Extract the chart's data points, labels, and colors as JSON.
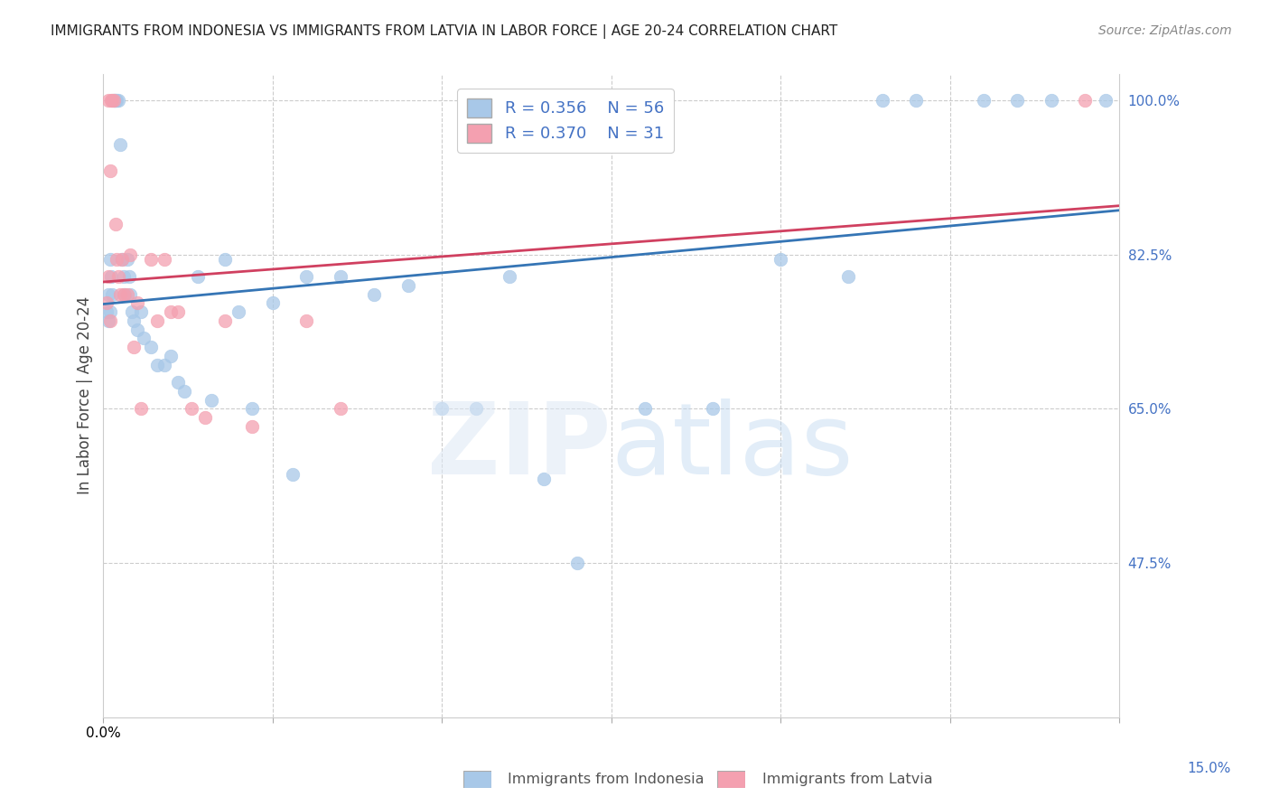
{
  "title": "IMMIGRANTS FROM INDONESIA VS IMMIGRANTS FROM LATVIA IN LABOR FORCE | AGE 20-24 CORRELATION CHART",
  "source": "Source: ZipAtlas.com",
  "ylabel": "In Labor Force | Age 20-24",
  "color_indonesia": "#a8c8e8",
  "color_latvia": "#f4a0b0",
  "color_indonesia_line": "#3575b5",
  "color_latvia_line": "#d04060",
  "color_right_axis": "#4472c4",
  "grid_color": "#cccccc",
  "xlim": [
    0.0,
    15.0
  ],
  "ylim": [
    30.0,
    103.0
  ],
  "right_yticks": [
    100.0,
    82.5,
    65.0,
    47.5
  ],
  "indo_x": [
    0.05,
    0.07,
    0.08,
    0.1,
    0.1,
    0.12,
    0.13,
    0.15,
    0.17,
    0.18,
    0.2,
    0.22,
    0.25,
    0.28,
    0.3,
    0.32,
    0.35,
    0.38,
    0.4,
    0.42,
    0.45,
    0.5,
    0.55,
    0.6,
    0.7,
    0.8,
    0.9,
    1.0,
    1.1,
    1.2,
    1.4,
    1.6,
    1.8,
    2.0,
    2.2,
    2.5,
    2.8,
    3.0,
    3.5,
    4.0,
    4.5,
    5.0,
    5.5,
    6.0,
    6.5,
    7.0,
    8.0,
    9.0,
    10.0,
    11.0,
    11.5,
    12.0,
    13.0,
    13.5,
    14.0,
    14.8
  ],
  "indo_y": [
    76.0,
    78.0,
    75.0,
    82.0,
    76.0,
    80.0,
    78.0,
    100.0,
    100.0,
    100.0,
    100.0,
    100.0,
    95.0,
    82.0,
    80.0,
    78.0,
    82.0,
    80.0,
    78.0,
    76.0,
    75.0,
    74.0,
    76.0,
    73.0,
    72.0,
    70.0,
    70.0,
    71.0,
    68.0,
    67.0,
    80.0,
    66.0,
    82.0,
    76.0,
    65.0,
    77.0,
    57.5,
    80.0,
    80.0,
    78.0,
    79.0,
    65.0,
    65.0,
    80.0,
    57.0,
    47.5,
    65.0,
    65.0,
    82.0,
    80.0,
    100.0,
    100.0,
    100.0,
    100.0,
    100.0,
    100.0
  ],
  "lat_x": [
    0.05,
    0.07,
    0.08,
    0.1,
    0.1,
    0.12,
    0.13,
    0.15,
    0.18,
    0.2,
    0.22,
    0.25,
    0.28,
    0.3,
    0.35,
    0.4,
    0.45,
    0.5,
    0.55,
    0.7,
    0.8,
    0.9,
    1.0,
    1.1,
    1.3,
    1.5,
    1.8,
    2.2,
    3.0,
    3.5,
    14.5
  ],
  "lat_y": [
    77.0,
    80.0,
    100.0,
    92.0,
    75.0,
    100.0,
    100.0,
    100.0,
    86.0,
    82.0,
    80.0,
    78.0,
    82.0,
    78.0,
    78.0,
    82.5,
    72.0,
    77.0,
    65.0,
    82.0,
    75.0,
    82.0,
    76.0,
    76.0,
    65.0,
    64.0,
    75.0,
    63.0,
    75.0,
    65.0,
    100.0
  ]
}
